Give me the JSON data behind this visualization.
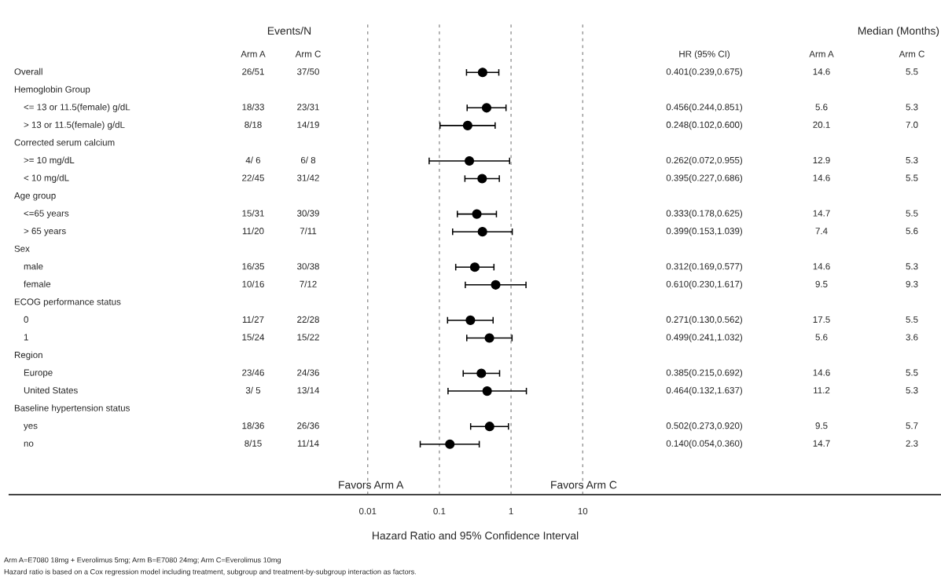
{
  "chart_data": {
    "type": "scatter",
    "xlabel": "Hazard Ratio and 95% Confidence Interval",
    "categories": [
      "Overall",
      "Hemoglobin Group",
      "<= 13 or 11.5(female) g/dL",
      "> 13 or 11.5(female) g/dL",
      "Corrected serum calcium",
      ">= 10 mg/dL",
      "< 10 mg/dL",
      "Age group",
      "<=65 years",
      "> 65 years",
      "Sex",
      "male",
      "female",
      "ECOG performance status",
      "0",
      "1",
      "Region",
      "Europe",
      "United States",
      "Baseline hypertension status",
      "yes",
      "no"
    ],
    "series": [
      {
        "color": "#000000",
        "values": [
          0.401,
          null,
          0.456,
          0.248,
          null,
          0.262,
          0.395,
          null,
          0.333,
          0.399,
          null,
          0.312,
          0.61,
          null,
          0.271,
          0.499,
          null,
          0.385,
          0.464,
          null,
          0.502,
          0.14
        ],
        "errors": [
          [
            0.239,
            0.675
          ],
          null,
          [
            0.244,
            0.851
          ],
          [
            0.102,
            0.6
          ],
          null,
          [
            0.072,
            0.955
          ],
          [
            0.227,
            0.686
          ],
          null,
          [
            0.178,
            0.625
          ],
          [
            0.153,
            1.039
          ],
          null,
          [
            0.169,
            0.577
          ],
          [
            0.23,
            1.617
          ],
          null,
          [
            0.13,
            0.562
          ],
          [
            0.241,
            1.032
          ],
          null,
          [
            0.215,
            0.692
          ],
          [
            0.132,
            1.637
          ],
          null,
          [
            0.273,
            0.92
          ],
          [
            0.054,
            0.36
          ]
        ]
      }
    ],
    "log": "x",
    "xlim": [
      1e-07,
      1000000.0
    ],
    "xticks": [
      {
        "value": 0.01,
        "label": "0.01"
      },
      {
        "value": 0.1,
        "label": "0.1"
      },
      1,
      10
    ],
    "orientation": "horizontal",
    "grid": "x",
    "marker": "circle",
    "annotations": [
      "Events/N",
      "Arm A",
      "Arm C",
      "HR (95% CI)",
      "Median (Months)",
      "Arm A",
      "Arm C",
      "Favors Arm A",
      "Favors Arm C",
      "Arm A=E7080 18mg + Everolimus 5mg; Arm B=E7080 24mg; Arm C=Everolimus 10mg",
      "Hazard ratio is based on a Cox regression model including treatment, subgroup and treatment-by-subgroup interaction as factors.",
      "26/51",
      "37/50",
      "0.401(0.239,0.675)",
      "14.6",
      "5.5",
      "18/33",
      "23/31",
      "0.456(0.244,0.851)",
      "5.6",
      "5.3",
      "8/18",
      "14/19",
      "0.248(0.102,0.600)",
      "20.1",
      "7.0",
      "4/ 6",
      "6/ 8",
      "0.262(0.072,0.955)",
      "12.9",
      "5.3",
      "22/45",
      "31/42",
      "0.395(0.227,0.686)",
      "14.6",
      "5.5",
      "15/31",
      "30/39",
      "0.333(0.178,0.625)",
      "14.7",
      "5.5",
      "11/20",
      "7/11",
      "0.399(0.153,1.039)",
      "7.4",
      "5.6",
      "16/35",
      "30/38",
      "0.312(0.169,0.577)",
      "14.6",
      "5.3",
      "10/16",
      "7/12",
      "0.610(0.230,1.617)",
      "9.5",
      "9.3",
      "11/27",
      "22/28",
      "0.271(0.130,0.562)",
      "17.5",
      "5.5",
      "15/24",
      "15/22",
      "0.499(0.241,1.032)",
      "5.6",
      "3.6",
      "23/46",
      "24/36",
      "0.385(0.215,0.692)",
      "14.6",
      "5.5",
      "3/ 5",
      "13/14",
      "0.464(0.132,1.637)",
      "11.2",
      "5.3",
      "18/36",
      "26/36",
      "0.502(0.273,0.920)",
      "9.5",
      "5.7",
      "8/15",
      "11/14",
      "0.140(0.054,0.360)",
      "14.7",
      "2.3"
    ]
  }
}
